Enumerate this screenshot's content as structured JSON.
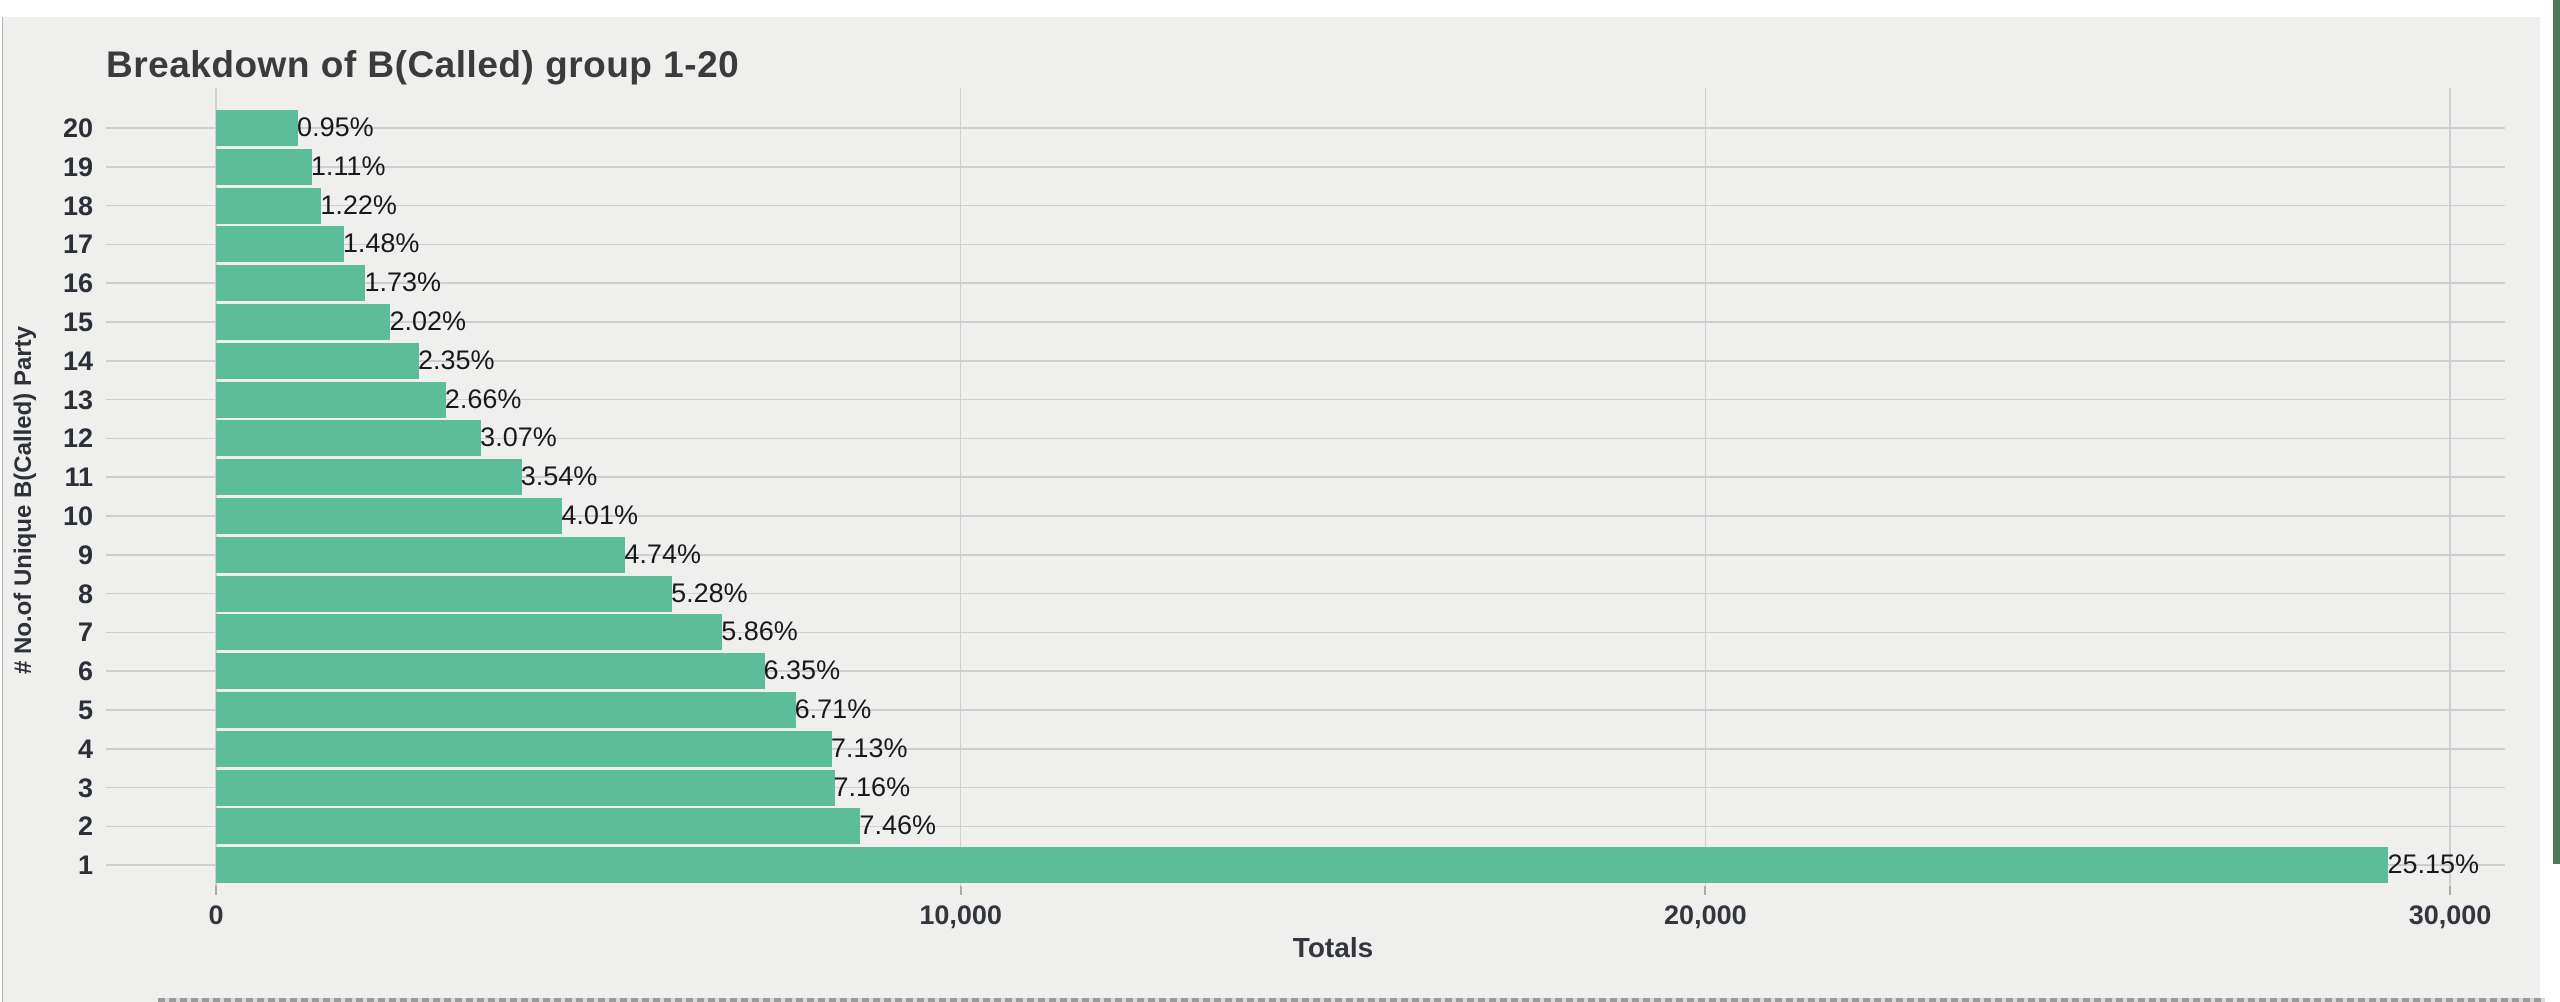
{
  "chart_data": {
    "type": "bar",
    "orientation": "horizontal",
    "title": "Breakdown of B(Called) group 1-20",
    "xlabel": "Totals",
    "ylabel": "# No.of Unique B(Called) Party",
    "categories": [
      "20",
      "19",
      "18",
      "17",
      "16",
      "15",
      "14",
      "13",
      "12",
      "11",
      "10",
      "9",
      "8",
      "7",
      "6",
      "5",
      "4",
      "3",
      "2",
      "1"
    ],
    "bar_labels": [
      "0.95%",
      "1.11%",
      "1.22%",
      "1.48%",
      "1.73%",
      "2.02%",
      "2.35%",
      "2.66%",
      "3.07%",
      "3.54%",
      "4.01%",
      "4.74%",
      "5.28%",
      "5.86%",
      "6.35%",
      "6.71%",
      "7.13%",
      "7.16%",
      "7.46%",
      "25.15%"
    ],
    "values_estimated": [
      1102,
      1288,
      1415,
      1717,
      2007,
      2343,
      2726,
      3086,
      3561,
      4106,
      4652,
      5498,
      6125,
      6798,
      7366,
      7784,
      8271,
      8306,
      8654,
      29174
    ],
    "xlim": [
      0,
      30740
    ],
    "xticks": {
      "values": [
        0,
        10000,
        20000,
        30000
      ],
      "labels": [
        "0",
        "10,000",
        "20,000",
        "30,000"
      ]
    },
    "grid": true,
    "legend": "none",
    "colors": {
      "bar": "#5bbd99",
      "plot_background": "#efefee",
      "page_background": "#ffffff",
      "gridline": "#cecece",
      "title_text": "#3b3b3b",
      "right_edge_strip": "#4d7a5a"
    }
  }
}
